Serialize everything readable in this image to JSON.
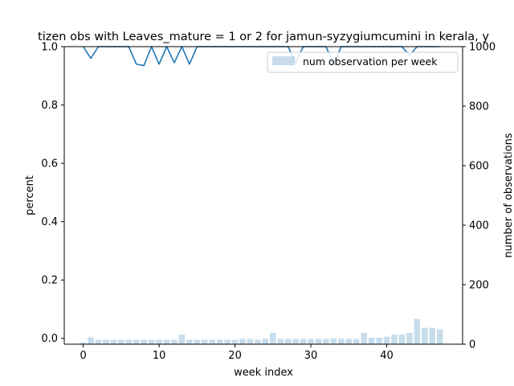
{
  "chart_data": {
    "type": "bar",
    "title": "tizen obs with Leaves_mature = 1 or 2 for jamun-syzygiumcumini in kerala, y",
    "xlabel": "week index",
    "ylabel": "percent",
    "y2label": "number of observations",
    "xlim": [
      -2.5,
      50
    ],
    "ylim": [
      -0.02,
      1.0
    ],
    "y2lim": [
      0,
      1000
    ],
    "xticks": [
      0,
      10,
      20,
      30,
      40
    ],
    "yticks": [
      0.0,
      0.2,
      0.4,
      0.6,
      0.8,
      1.0
    ],
    "y2ticks": [
      0,
      200,
      400,
      600,
      800,
      1000
    ],
    "legend_position": "top-right",
    "line_color": "#1f77b4",
    "bar_color": "#1f77b4",
    "bar_alpha": 0.25,
    "series": [
      {
        "axis": "left",
        "kind": "line",
        "x": [
          0,
          1,
          2,
          3,
          4,
          5,
          6,
          7,
          8,
          9,
          10,
          11,
          12,
          13,
          14,
          15,
          16,
          17,
          18,
          19,
          20,
          21,
          22,
          23,
          24,
          25,
          26,
          27,
          28,
          29,
          30,
          31,
          32,
          33,
          34,
          35,
          36,
          37,
          38,
          39,
          40,
          41,
          42,
          43,
          44,
          45,
          46,
          47
        ],
        "values": [
          1.0,
          0.96,
          1.0,
          1.0,
          1.0,
          1.0,
          1.0,
          0.94,
          0.935,
          1.0,
          0.94,
          1.0,
          0.945,
          1.0,
          0.94,
          1.0,
          1.0,
          1.0,
          1.0,
          1.0,
          1.0,
          1.0,
          1.0,
          1.0,
          1.0,
          1.0,
          1.0,
          1.0,
          0.945,
          1.0,
          1.0,
          1.0,
          1.0,
          0.94,
          1.0,
          1.0,
          1.0,
          1.0,
          1.0,
          1.0,
          1.0,
          1.0,
          1.0,
          0.97,
          1.0,
          1.0,
          1.0,
          1.0
        ]
      },
      {
        "name": "num observation per week",
        "axis": "right",
        "kind": "bar",
        "x": [
          0,
          1,
          2,
          3,
          4,
          5,
          6,
          7,
          8,
          9,
          10,
          11,
          12,
          13,
          14,
          15,
          16,
          17,
          18,
          19,
          20,
          21,
          22,
          23,
          24,
          25,
          26,
          27,
          28,
          29,
          30,
          31,
          32,
          33,
          34,
          35,
          36,
          37,
          38,
          39,
          40,
          41,
          42,
          43,
          44,
          45,
          46,
          47
        ],
        "values": [
          5,
          23,
          15,
          15,
          15,
          15,
          15,
          15,
          15,
          15,
          15,
          15,
          15,
          32,
          15,
          15,
          15,
          15,
          15,
          15,
          15,
          18,
          18,
          15,
          18,
          38,
          18,
          18,
          18,
          18,
          18,
          18,
          18,
          20,
          18,
          18,
          18,
          38,
          22,
          22,
          25,
          32,
          32,
          38,
          85,
          55,
          55,
          50
        ]
      }
    ]
  }
}
